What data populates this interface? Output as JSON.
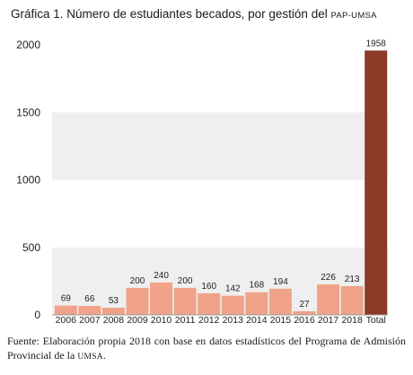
{
  "chart_data": {
    "type": "bar",
    "title": {
      "prefix": "Gráfica 1. Número de estudiantes becados, por gestión del",
      "abbr": "pap-umsa"
    },
    "categories": [
      "2006",
      "2007",
      "2008",
      "2009",
      "2010",
      "2011",
      "2012",
      "2013",
      "2014",
      "2015",
      "2016",
      "2017",
      "2018",
      "Total"
    ],
    "values": [
      69,
      66,
      53,
      200,
      240,
      200,
      160,
      142,
      168,
      194,
      27,
      226,
      213,
      1958
    ],
    "ylim": [
      0,
      2000
    ],
    "yticks": [
      "0",
      "500",
      "1000",
      "1500",
      "2000"
    ],
    "grid": "alternating bands",
    "colors": {
      "bar": "#f0a388",
      "total_bar": "#8b3a28",
      "band_light": "#efefef",
      "band_white": "#ffffff",
      "axis": "#9a9a9a"
    },
    "source": {
      "text": "Fuente: Elaboración propia 2018 con base en datos estadísticos del Programa de Admisión Provincial de la",
      "abbr": "umsa",
      "end": "."
    }
  }
}
